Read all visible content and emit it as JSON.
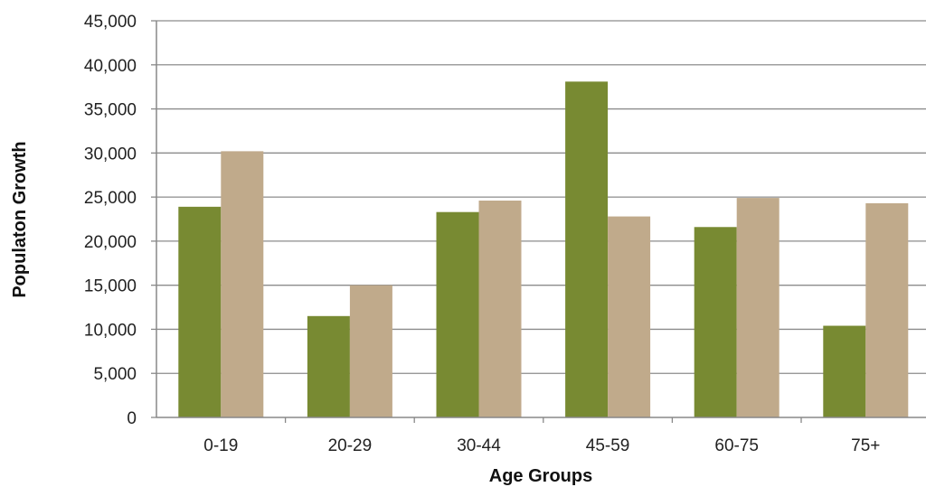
{
  "chart_data": {
    "type": "bar",
    "title": "",
    "xlabel": "Age Groups",
    "ylabel": "Populaton Growth",
    "categories": [
      "0-19",
      "20-29",
      "30-44",
      "45-59",
      "60-75",
      "75+"
    ],
    "series": [
      {
        "values": [
          23900,
          11500,
          23300,
          38100,
          21600,
          10400
        ],
        "color": "#788A32"
      },
      {
        "values": [
          30200,
          15000,
          24600,
          22800,
          24900,
          24300
        ],
        "color": "#C0AA8B"
      }
    ],
    "ylim": [
      0,
      45000
    ],
    "yticks": [
      "0",
      "5,000",
      "10,000",
      "15,000",
      "20,000",
      "25,000",
      "30,000",
      "35,000",
      "40,000",
      "45,000"
    ],
    "grid": true,
    "legend": "none"
  }
}
